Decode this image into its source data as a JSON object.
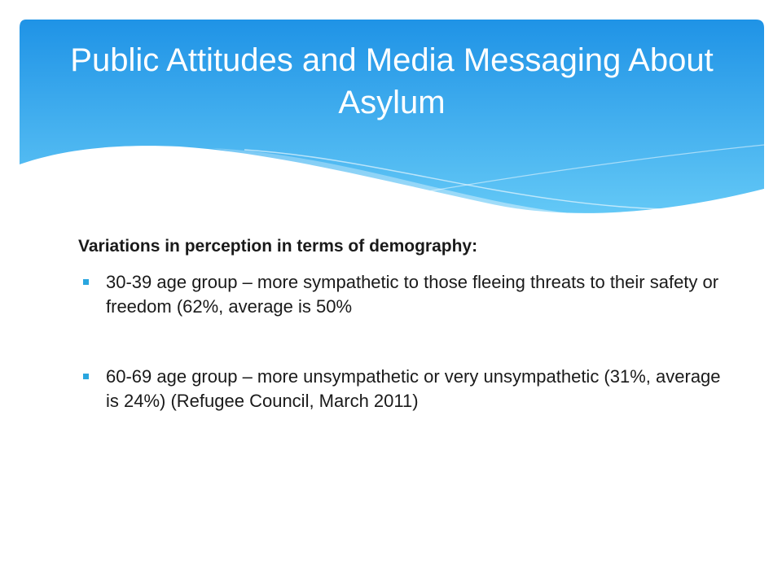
{
  "slide": {
    "title": "Public Attitudes and Media Messaging About Asylum",
    "heading": "Variations in perception in terms of demography:",
    "bullets": [
      "30-39 age group – more sympathetic to those fleeing threats to their safety or freedom (62%, average is 50%",
      "60-69 age group – more unsympathetic or very unsympathetic (31%, average is 24%) (Refugee Council, March 2011)"
    ]
  },
  "colors": {
    "banner_top": "#2196e8",
    "banner_bottom": "#5cc4f5",
    "bullet_marker": "#2aa6df"
  },
  "icons": {
    "bullet": "square-bullet-icon"
  }
}
